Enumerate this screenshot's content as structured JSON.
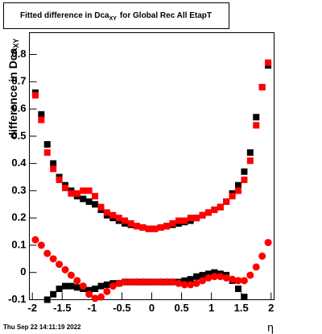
{
  "chart_data": {
    "type": "scatter",
    "title": "Fitted difference in Dca",
    "title_subscript": "XY",
    "title_suffix": "for Global Rec All EtapT",
    "y_label": "difference in Dca",
    "y_label_subscript": "XY",
    "x_label": "η",
    "footer": "Thu Sep 22 14:11:19 2022",
    "xlim": [
      -2.05,
      2.05
    ],
    "ylim": [
      -0.1,
      0.88
    ],
    "xticks": [
      -2,
      -1.5,
      -1,
      -0.5,
      0,
      0.5,
      1,
      1.5,
      2
    ],
    "yticks": [
      -0.1,
      0,
      0.1,
      0.2,
      0.3,
      0.4,
      0.5,
      0.6,
      0.7,
      0.8
    ],
    "x": [
      -1.95,
      -1.85,
      -1.75,
      -1.65,
      -1.55,
      -1.45,
      -1.35,
      -1.25,
      -1.15,
      -1.05,
      -0.95,
      -0.85,
      -0.75,
      -0.65,
      -0.55,
      -0.45,
      -0.35,
      -0.25,
      -0.15,
      -0.05,
      0.05,
      0.15,
      0.25,
      0.35,
      0.45,
      0.55,
      0.65,
      0.75,
      0.85,
      0.95,
      1.05,
      1.15,
      1.25,
      1.35,
      1.45,
      1.55,
      1.65,
      1.75,
      1.85,
      1.95
    ],
    "series": [
      {
        "color": "#000000",
        "marker": "square",
        "values": [
          0.66,
          0.58,
          0.47,
          0.4,
          0.35,
          0.32,
          0.3,
          0.28,
          0.27,
          0.26,
          0.25,
          0.23,
          0.21,
          0.2,
          0.19,
          0.18,
          0.175,
          0.17,
          0.165,
          0.16,
          0.16,
          0.165,
          0.17,
          0.175,
          0.18,
          0.185,
          0.19,
          0.2,
          0.21,
          0.22,
          0.23,
          0.24,
          0.26,
          0.29,
          0.32,
          0.37,
          0.44,
          0.57,
          0.68,
          0.76
        ]
      },
      {
        "color": "#000000",
        "marker": "square",
        "values": [
          null,
          null,
          -0.1,
          -0.08,
          -0.06,
          -0.05,
          -0.05,
          -0.055,
          -0.06,
          -0.065,
          -0.06,
          -0.05,
          -0.045,
          -0.04,
          -0.04,
          -0.035,
          -0.035,
          -0.035,
          -0.035,
          -0.035,
          -0.035,
          -0.035,
          -0.035,
          -0.035,
          -0.035,
          -0.03,
          -0.025,
          -0.015,
          -0.01,
          -0.005,
          0,
          -0.005,
          -0.01,
          -0.03,
          -0.06,
          -0.09,
          null,
          null,
          null,
          null
        ]
      },
      {
        "color": "#ff0000",
        "marker": "square",
        "values": [
          0.65,
          0.56,
          0.44,
          0.38,
          0.34,
          0.31,
          0.29,
          0.29,
          0.3,
          0.3,
          0.28,
          0.24,
          0.22,
          0.21,
          0.2,
          0.19,
          0.18,
          0.17,
          0.165,
          0.16,
          0.16,
          0.165,
          0.17,
          0.18,
          0.19,
          0.19,
          0.2,
          0.2,
          0.21,
          0.22,
          0.23,
          0.24,
          0.26,
          0.28,
          0.3,
          0.34,
          0.41,
          0.54,
          0.68,
          0.77
        ]
      },
      {
        "color": "#ff0000",
        "marker": "circle",
        "values": [
          0.12,
          0.1,
          0.07,
          0.05,
          0.03,
          0.01,
          -0.01,
          -0.03,
          -0.05,
          -0.08,
          -0.095,
          -0.09,
          -0.07,
          -0.05,
          -0.04,
          -0.035,
          -0.035,
          -0.035,
          -0.035,
          -0.035,
          -0.035,
          -0.035,
          -0.035,
          -0.035,
          -0.04,
          -0.045,
          -0.045,
          -0.04,
          -0.03,
          -0.02,
          -0.015,
          -0.015,
          -0.02,
          -0.025,
          -0.03,
          -0.03,
          -0.01,
          0.02,
          0.06,
          0.11
        ]
      }
    ]
  }
}
